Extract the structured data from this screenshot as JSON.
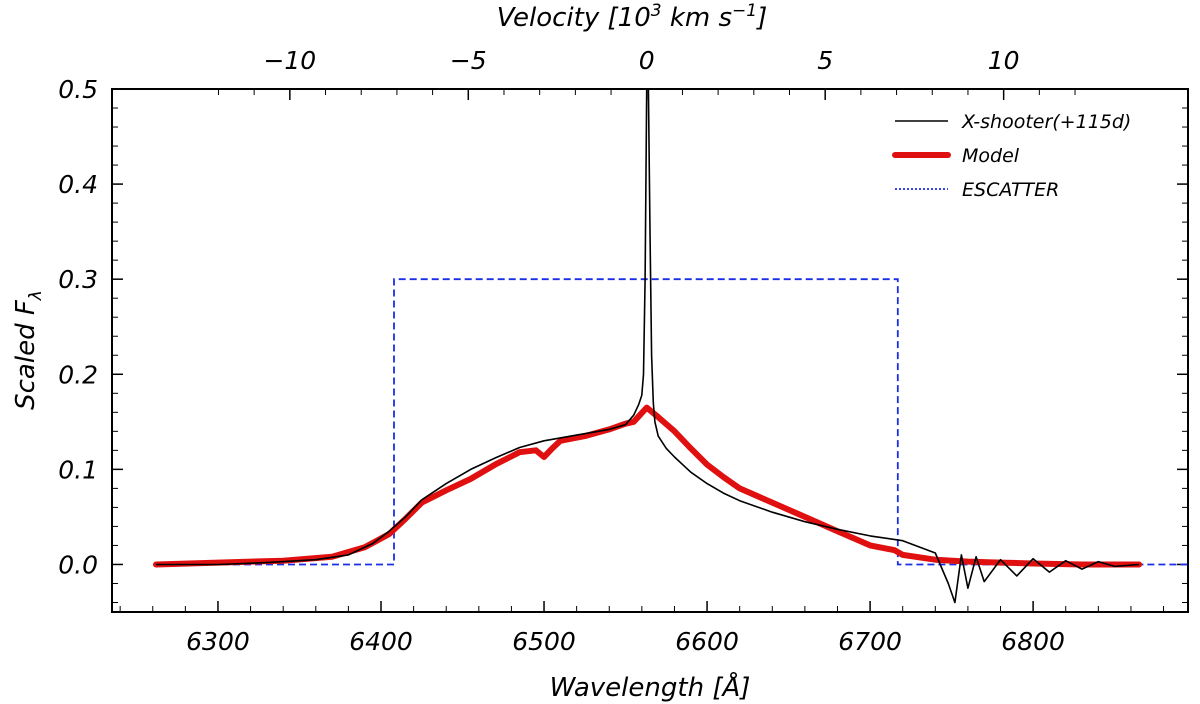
{
  "chart_data": {
    "type": "line",
    "xlabel": "Wavelength [Å]",
    "ylabel": "Scaled F_λ",
    "top_xlabel": "Velocity [10^3 km s^-1]",
    "xlim": [
      6235,
      6895
    ],
    "ylim": [
      -0.05,
      0.5
    ],
    "x_ticks": [
      6300,
      6400,
      6500,
      6600,
      6700,
      6800
    ],
    "x_tick_labels": [
      "6300",
      "6400",
      "6500",
      "6600",
      "6700",
      "6800"
    ],
    "y_ticks": [
      0.0,
      0.1,
      0.2,
      0.3,
      0.4,
      0.5
    ],
    "y_tick_labels": [
      "0.0",
      "0.1",
      "0.2",
      "0.3",
      "0.4",
      "0.5"
    ],
    "velocity_ticks": [
      -10,
      -5,
      0,
      5,
      10
    ],
    "velocity_tick_labels": [
      "−10",
      "−5",
      "0",
      "5",
      "10"
    ],
    "velocity_rest_wavelength": 6563,
    "legend_position": "top-right",
    "grid": false,
    "series": [
      {
        "name": "X-shooter(+115d)",
        "color": "#000000",
        "style": "solid-thin",
        "x": [
          6262,
          6300,
          6330,
          6360,
          6380,
          6395,
          6405,
          6415,
          6425,
          6440,
          6455,
          6470,
          6485,
          6500,
          6520,
          6540,
          6550,
          6555,
          6558,
          6560,
          6561,
          6562,
          6563,
          6564,
          6565,
          6566,
          6567,
          6568,
          6570,
          6575,
          6580,
          6585,
          6590,
          6600,
          6610,
          6620,
          6640,
          6660,
          6680,
          6700,
          6720,
          6740,
          6748,
          6752,
          6756,
          6760,
          6765,
          6770,
          6780,
          6790,
          6800,
          6810,
          6820,
          6830,
          6840,
          6850,
          6865
        ],
        "y": [
          0.0,
          0.0,
          0.002,
          0.005,
          0.01,
          0.022,
          0.035,
          0.05,
          0.068,
          0.085,
          0.1,
          0.112,
          0.123,
          0.13,
          0.136,
          0.142,
          0.147,
          0.157,
          0.168,
          0.178,
          0.2,
          0.3,
          0.5,
          0.5,
          0.35,
          0.22,
          0.17,
          0.15,
          0.135,
          0.122,
          0.113,
          0.105,
          0.097,
          0.085,
          0.075,
          0.067,
          0.055,
          0.045,
          0.037,
          0.03,
          0.025,
          0.012,
          -0.02,
          -0.04,
          0.01,
          -0.025,
          0.008,
          -0.018,
          0.005,
          -0.012,
          0.006,
          -0.008,
          0.004,
          -0.005,
          0.003,
          -0.002,
          0.0
        ]
      },
      {
        "name": "Model",
        "color": "#e01010",
        "style": "solid-thick",
        "x": [
          6262,
          6300,
          6340,
          6370,
          6390,
          6405,
          6415,
          6425,
          6440,
          6455,
          6470,
          6485,
          6495,
          6500,
          6505,
          6510,
          6525,
          6540,
          6550,
          6555,
          6563,
          6570,
          6580,
          6590,
          6600,
          6610,
          6620,
          6640,
          6660,
          6680,
          6700,
          6715,
          6720,
          6740,
          6760,
          6780,
          6800,
          6830,
          6865
        ],
        "y": [
          0.0,
          0.002,
          0.004,
          0.008,
          0.018,
          0.032,
          0.048,
          0.065,
          0.078,
          0.09,
          0.105,
          0.118,
          0.12,
          0.113,
          0.122,
          0.13,
          0.135,
          0.142,
          0.148,
          0.15,
          0.165,
          0.155,
          0.14,
          0.122,
          0.105,
          0.092,
          0.08,
          0.065,
          0.05,
          0.035,
          0.02,
          0.015,
          0.01,
          0.005,
          0.003,
          0.002,
          0.001,
          0.0,
          0.0
        ]
      },
      {
        "name": "ESCATTER",
        "color": "#1a2ee6",
        "style": "dashed",
        "x": [
          6262,
          6408,
          6408,
          6717,
          6717,
          6895
        ],
        "y": [
          0.0,
          0.0,
          0.3,
          0.3,
          0.0,
          0.0
        ]
      }
    ]
  }
}
